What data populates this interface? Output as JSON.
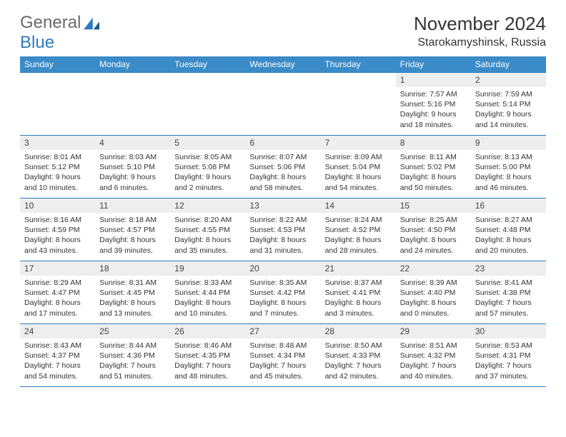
{
  "brand": {
    "part1": "General",
    "part2": "Blue"
  },
  "title": "November 2024",
  "location": "Starokamyshinsk, Russia",
  "colors": {
    "header_bg": "#3b8bc8",
    "header_text": "#ffffff",
    "rule": "#2f7bbf",
    "daynum_bg": "#eeeeee",
    "body_text": "#333333",
    "logo_gray": "#6a6a6a",
    "logo_blue": "#2f7bbf"
  },
  "dows": [
    "Sunday",
    "Monday",
    "Tuesday",
    "Wednesday",
    "Thursday",
    "Friday",
    "Saturday"
  ],
  "weeks": [
    [
      null,
      null,
      null,
      null,
      null,
      {
        "n": "1",
        "sr": "7:57 AM",
        "ss": "5:16 PM",
        "dl": "9 hours and 18 minutes."
      },
      {
        "n": "2",
        "sr": "7:59 AM",
        "ss": "5:14 PM",
        "dl": "9 hours and 14 minutes."
      }
    ],
    [
      {
        "n": "3",
        "sr": "8:01 AM",
        "ss": "5:12 PM",
        "dl": "9 hours and 10 minutes."
      },
      {
        "n": "4",
        "sr": "8:03 AM",
        "ss": "5:10 PM",
        "dl": "9 hours and 6 minutes."
      },
      {
        "n": "5",
        "sr": "8:05 AM",
        "ss": "5:08 PM",
        "dl": "9 hours and 2 minutes."
      },
      {
        "n": "6",
        "sr": "8:07 AM",
        "ss": "5:06 PM",
        "dl": "8 hours and 58 minutes."
      },
      {
        "n": "7",
        "sr": "8:09 AM",
        "ss": "5:04 PM",
        "dl": "8 hours and 54 minutes."
      },
      {
        "n": "8",
        "sr": "8:11 AM",
        "ss": "5:02 PM",
        "dl": "8 hours and 50 minutes."
      },
      {
        "n": "9",
        "sr": "8:13 AM",
        "ss": "5:00 PM",
        "dl": "8 hours and 46 minutes."
      }
    ],
    [
      {
        "n": "10",
        "sr": "8:16 AM",
        "ss": "4:59 PM",
        "dl": "8 hours and 43 minutes."
      },
      {
        "n": "11",
        "sr": "8:18 AM",
        "ss": "4:57 PM",
        "dl": "8 hours and 39 minutes."
      },
      {
        "n": "12",
        "sr": "8:20 AM",
        "ss": "4:55 PM",
        "dl": "8 hours and 35 minutes."
      },
      {
        "n": "13",
        "sr": "8:22 AM",
        "ss": "4:53 PM",
        "dl": "8 hours and 31 minutes."
      },
      {
        "n": "14",
        "sr": "8:24 AM",
        "ss": "4:52 PM",
        "dl": "8 hours and 28 minutes."
      },
      {
        "n": "15",
        "sr": "8:25 AM",
        "ss": "4:50 PM",
        "dl": "8 hours and 24 minutes."
      },
      {
        "n": "16",
        "sr": "8:27 AM",
        "ss": "4:48 PM",
        "dl": "8 hours and 20 minutes."
      }
    ],
    [
      {
        "n": "17",
        "sr": "8:29 AM",
        "ss": "4:47 PM",
        "dl": "8 hours and 17 minutes."
      },
      {
        "n": "18",
        "sr": "8:31 AM",
        "ss": "4:45 PM",
        "dl": "8 hours and 13 minutes."
      },
      {
        "n": "19",
        "sr": "8:33 AM",
        "ss": "4:44 PM",
        "dl": "8 hours and 10 minutes."
      },
      {
        "n": "20",
        "sr": "8:35 AM",
        "ss": "4:42 PM",
        "dl": "8 hours and 7 minutes."
      },
      {
        "n": "21",
        "sr": "8:37 AM",
        "ss": "4:41 PM",
        "dl": "8 hours and 3 minutes."
      },
      {
        "n": "22",
        "sr": "8:39 AM",
        "ss": "4:40 PM",
        "dl": "8 hours and 0 minutes."
      },
      {
        "n": "23",
        "sr": "8:41 AM",
        "ss": "4:38 PM",
        "dl": "7 hours and 57 minutes."
      }
    ],
    [
      {
        "n": "24",
        "sr": "8:43 AM",
        "ss": "4:37 PM",
        "dl": "7 hours and 54 minutes."
      },
      {
        "n": "25",
        "sr": "8:44 AM",
        "ss": "4:36 PM",
        "dl": "7 hours and 51 minutes."
      },
      {
        "n": "26",
        "sr": "8:46 AM",
        "ss": "4:35 PM",
        "dl": "7 hours and 48 minutes."
      },
      {
        "n": "27",
        "sr": "8:48 AM",
        "ss": "4:34 PM",
        "dl": "7 hours and 45 minutes."
      },
      {
        "n": "28",
        "sr": "8:50 AM",
        "ss": "4:33 PM",
        "dl": "7 hours and 42 minutes."
      },
      {
        "n": "29",
        "sr": "8:51 AM",
        "ss": "4:32 PM",
        "dl": "7 hours and 40 minutes."
      },
      {
        "n": "30",
        "sr": "8:53 AM",
        "ss": "4:31 PM",
        "dl": "7 hours and 37 minutes."
      }
    ]
  ],
  "labels": {
    "sunrise": "Sunrise:",
    "sunset": "Sunset:",
    "daylight": "Daylight:"
  }
}
